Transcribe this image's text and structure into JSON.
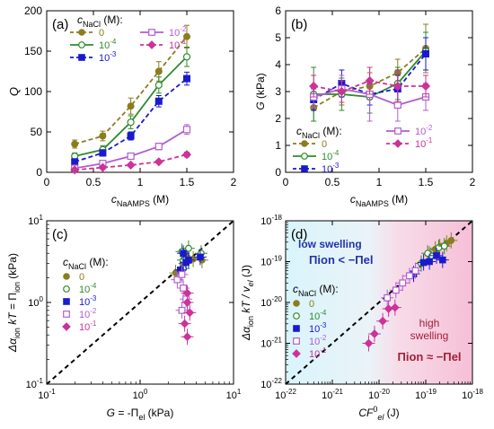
{
  "colors": {
    "c0": "#8b7d1e",
    "c4": "#2e8b2e",
    "c3": "#1a1acc",
    "c2": "#b15ed1",
    "c1": "#cc3399",
    "dashed": "#000000"
  },
  "legend_values": [
    "0",
    "10-4",
    "10-3",
    "10-2",
    "10-1"
  ],
  "chart_data": [
    {
      "panel": "a",
      "label": "(a)",
      "type": "line",
      "xlabel": "cNaAMPS (M)",
      "xlabel_main": "c",
      "xlabel_sub": "NaAMPS",
      "xlabel_unit": " (M)",
      "ylabel": "Q",
      "xlim": [
        0,
        2
      ],
      "ylim": [
        0,
        200
      ],
      "scale": "linear",
      "xticks": [
        "0",
        "0.5",
        "1",
        "1.5",
        "2"
      ],
      "yticks": [
        "0",
        "50",
        "100",
        "150",
        "200"
      ],
      "legend_title_main": "c",
      "legend_title_sub": "NaCl",
      "legend_title_unit": " (M):",
      "x": [
        0.3,
        0.6,
        0.9,
        1.2,
        1.5
      ],
      "series": [
        {
          "name": "0",
          "values": [
            35,
            45,
            82,
            125,
            168
          ],
          "err": [
            5,
            6,
            10,
            12,
            14
          ],
          "style": "dashed",
          "marker": "circle"
        },
        {
          "name": "10-4",
          "values": [
            20,
            28,
            62,
            108,
            143
          ],
          "err": [
            4,
            5,
            8,
            10,
            12
          ],
          "style": "solid",
          "marker": "circle-open"
        },
        {
          "name": "10-3",
          "values": [
            13,
            24,
            45,
            88,
            116
          ],
          "err": [
            3,
            4,
            5,
            7,
            8
          ],
          "style": "dashed",
          "marker": "square"
        },
        {
          "name": "10-2",
          "values": [
            5,
            11,
            20,
            32,
            53
          ],
          "err": [
            2,
            2,
            3,
            4,
            6
          ],
          "style": "solid",
          "marker": "square-open"
        },
        {
          "name": "10-1",
          "values": [
            3,
            6,
            9,
            13,
            22
          ],
          "err": [
            1,
            1,
            2,
            2,
            3
          ],
          "style": "dashed",
          "marker": "diamond"
        }
      ]
    },
    {
      "panel": "b",
      "label": "(b)",
      "type": "line",
      "xlabel": "cNaAMPS (M)",
      "xlabel_main": "c",
      "xlabel_sub": "NaAMPS",
      "xlabel_unit": " (M)",
      "ylabel": "G (kPa)",
      "ylabel_main": "G",
      "ylabel_unit": " (kPa)",
      "xlim": [
        0,
        2
      ],
      "ylim": [
        0,
        6
      ],
      "scale": "linear",
      "xticks": [
        "0",
        "0.5",
        "1",
        "1.5",
        "2"
      ],
      "yticks": [
        "0",
        "1",
        "2",
        "3",
        "4",
        "5",
        "6"
      ],
      "legend_title_main": "c",
      "legend_title_sub": "NaCl",
      "legend_title_unit": " (M):",
      "x": [
        0.3,
        0.6,
        0.9,
        1.2,
        1.5
      ],
      "series": [
        {
          "name": "0",
          "values": [
            2.4,
            3.0,
            3.2,
            3.7,
            4.6
          ],
          "err": [
            0.5,
            0.5,
            0.5,
            0.5,
            0.9
          ],
          "style": "dashed",
          "marker": "circle"
        },
        {
          "name": "10-4",
          "values": [
            2.9,
            2.9,
            2.8,
            3.3,
            4.5
          ],
          "err": [
            1.0,
            0.6,
            0.6,
            0.6,
            0.7
          ],
          "style": "solid",
          "marker": "circle-open"
        },
        {
          "name": "10-3",
          "values": [
            2.7,
            3.3,
            2.9,
            3.1,
            4.4
          ],
          "err": [
            0.4,
            0.5,
            0.4,
            0.5,
            0.6
          ],
          "style": "dashed",
          "marker": "square"
        },
        {
          "name": "10-2",
          "values": [
            2.8,
            3.1,
            2.9,
            2.5,
            2.8
          ],
          "err": [
            0.4,
            0.5,
            1.0,
            0.6,
            0.5
          ],
          "style": "solid",
          "marker": "square-open"
        },
        {
          "name": "10-1",
          "values": [
            3.2,
            3.0,
            3.4,
            3.2,
            3.2
          ],
          "err": [
            0.4,
            0.4,
            0.5,
            0.6,
            0.4
          ],
          "style": "dashed",
          "marker": "diamond"
        }
      ]
    },
    {
      "panel": "c",
      "label": "(c)",
      "type": "scatter",
      "xlabel": "G = -Πel (kPa)",
      "ylabel": "Δαion kT = Πion (kPa)",
      "xlim": [
        0.1,
        10
      ],
      "ylim": [
        0.1,
        10
      ],
      "scale": "log",
      "xticks": [
        "10-1",
        "100",
        "101"
      ],
      "yticks": [
        "10-1",
        "100",
        "101"
      ],
      "diagonal": true,
      "legend_title_main": "c",
      "legend_title_sub": "NaCl",
      "legend_title_unit": " (M):",
      "series": [
        {
          "name": "0",
          "marker": "circle",
          "points": [
            [
              2.4,
              2.3
            ],
            [
              3.0,
              3.0
            ],
            [
              3.2,
              3.6
            ],
            [
              3.7,
              3.4
            ],
            [
              4.6,
              3.3
            ]
          ]
        },
        {
          "name": "10-4",
          "marker": "circle-open",
          "points": [
            [
              2.9,
              2.6
            ],
            [
              2.9,
              3.3
            ],
            [
              2.8,
              4.2
            ],
            [
              3.3,
              4.6
            ],
            [
              4.5,
              4.0
            ]
          ]
        },
        {
          "name": "10-3",
          "marker": "square",
          "points": [
            [
              2.7,
              2.5
            ],
            [
              3.3,
              3.3
            ],
            [
              2.9,
              4.0
            ],
            [
              3.1,
              3.1
            ],
            [
              4.4,
              3.6
            ]
          ]
        },
        {
          "name": "10-2",
          "marker": "square-open",
          "points": [
            [
              2.8,
              0.8
            ],
            [
              3.1,
              1.1
            ],
            [
              2.9,
              1.5
            ],
            [
              2.5,
              1.9
            ],
            [
              2.8,
              2.2
            ]
          ]
        },
        {
          "name": "10-1",
          "marker": "diamond",
          "points": [
            [
              3.2,
              0.38
            ],
            [
              3.0,
              0.55
            ],
            [
              3.4,
              0.75
            ],
            [
              3.2,
              1.0
            ],
            [
              3.2,
              1.3
            ]
          ]
        }
      ]
    },
    {
      "panel": "d",
      "label": "(d)",
      "type": "scatter",
      "xlabel": "CF0el (J)",
      "ylabel": "Δαion kT / vel (J)",
      "xlim": [
        1e-22,
        1e-18
      ],
      "ylim": [
        1e-22,
        1e-18
      ],
      "scale": "log",
      "xticks": [
        "10-22",
        "10-21",
        "10-20",
        "10-19",
        "10-18"
      ],
      "yticks": [
        "10-22",
        "10-21",
        "10-20",
        "10-19",
        "10-18"
      ],
      "diagonal": true,
      "annotations": {
        "low": "low swelling",
        "low_eq": "Πion < −Πel",
        "high1": "high",
        "high2": "swelling",
        "high_eq": "Πion ≈ −Πel"
      },
      "legend_title_main": "c",
      "legend_title_sub": "NaCl",
      "legend_title_unit": " (M):",
      "series": [
        {
          "name": "0",
          "marker": "circle",
          "points": [
            [
              1.2e-19,
              1.5e-19
            ],
            [
              2e-19,
              2.3e-19
            ],
            [
              2.8e-19,
              2.8e-19
            ],
            [
              3.5e-19,
              3.3e-19
            ],
            [
              1.6e-19,
              2e-19
            ]
          ]
        },
        {
          "name": "10-4",
          "marker": "circle-open",
          "points": [
            [
              8e-20,
              9e-20
            ],
            [
              1.3e-19,
              1.4e-19
            ],
            [
              1.9e-19,
              2.2e-19
            ],
            [
              2.5e-19,
              2.4e-19
            ],
            [
              1.1e-19,
              1.6e-19
            ]
          ]
        },
        {
          "name": "10-3",
          "marker": "square",
          "points": [
            [
              5.5e-20,
              5e-20
            ],
            [
              9e-20,
              9.5e-20
            ],
            [
              1.2e-19,
              1e-19
            ],
            [
              1.7e-19,
              1.4e-19
            ],
            [
              2.3e-19,
              1.1e-19
            ]
          ]
        },
        {
          "name": "10-2",
          "marker": "square-open",
          "points": [
            [
              1.5e-20,
              1.3e-20
            ],
            [
              2.3e-20,
              2e-20
            ],
            [
              3.2e-20,
              3e-20
            ],
            [
              4.5e-20,
              4.5e-20
            ],
            [
              6e-20,
              6e-20
            ]
          ]
        },
        {
          "name": "10-1",
          "marker": "diamond",
          "points": [
            [
              6e-21,
              1e-21
            ],
            [
              8e-21,
              1.7e-21
            ],
            [
              1.2e-20,
              3.5e-21
            ],
            [
              1.6e-20,
              7e-21
            ],
            [
              2.2e-20,
              7.5e-21
            ]
          ]
        }
      ]
    }
  ]
}
